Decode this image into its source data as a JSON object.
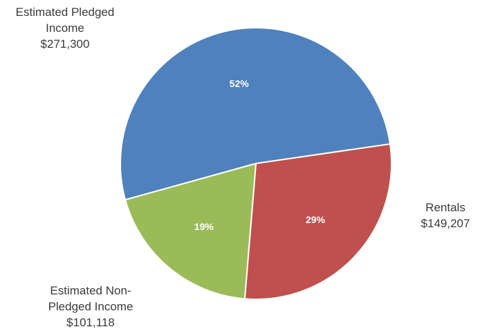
{
  "chart_data": {
    "type": "pie",
    "slices": [
      {
        "key": "pledged",
        "label_lines": [
          "Estimated Pledged",
          "Income"
        ],
        "amount": "$271,300",
        "value": 271300,
        "percent_label": "52%",
        "color": "#4f81bd"
      },
      {
        "key": "rentals",
        "label_lines": [
          "Rentals"
        ],
        "amount": "$149,207",
        "value": 149207,
        "percent_label": "29%",
        "color": "#c0504d"
      },
      {
        "key": "nonpledged",
        "label_lines": [
          "Estimated Non-",
          "Pledged Income"
        ],
        "amount": "$101,118",
        "value": 101118,
        "percent_label": "19%",
        "color": "#9bbb59"
      }
    ],
    "start_angle_deg": 180,
    "direction": "clockwise",
    "legend": "none",
    "data_labels": "percent inside, category and amount outside"
  }
}
